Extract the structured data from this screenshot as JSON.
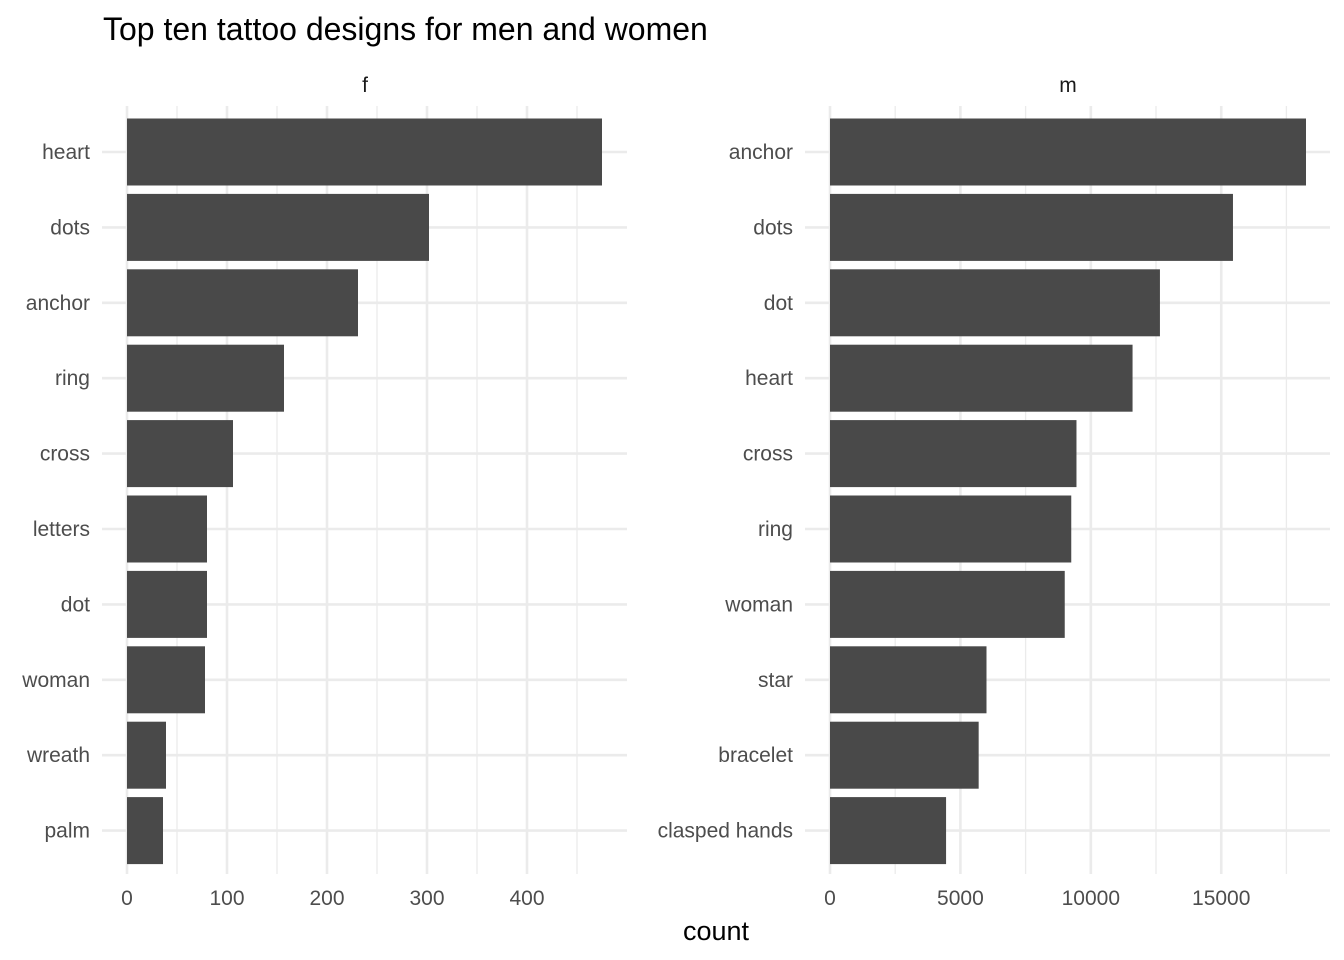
{
  "chart_data": {
    "type": "bar",
    "orientation": "horizontal",
    "title": "Top ten tattoo designs for men and women",
    "xlabel": "count",
    "ylabel": "",
    "grid": true,
    "legend": "none",
    "colors": {
      "bar": "#494949",
      "grid": "#ebebeb",
      "background": "#ffffff"
    },
    "panels": [
      {
        "strip": "f",
        "categories": [
          "heart",
          "dots",
          "anchor",
          "ring",
          "cross",
          "letters",
          "dot",
          "woman",
          "wreath",
          "palm"
        ],
        "values": [
          475,
          302,
          231,
          157,
          106,
          80,
          80,
          78,
          39,
          36
        ],
        "xlim": [
          0,
          476
        ],
        "x_ticks": [
          0,
          100,
          200,
          300,
          400
        ],
        "x_tick_labels": [
          "0",
          "100",
          "200",
          "300",
          "400"
        ],
        "x_minor_ticks": [
          50,
          150,
          250,
          350,
          450
        ]
      },
      {
        "strip": "m",
        "categories": [
          "anchor",
          "dots",
          "dot",
          "heart",
          "cross",
          "ring",
          "woman",
          "star",
          "bracelet",
          "clasped hands"
        ],
        "values": [
          18250,
          15450,
          12650,
          11600,
          9450,
          9250,
          9000,
          6000,
          5700,
          4450
        ],
        "xlim": [
          0,
          18250
        ],
        "x_ticks": [
          0,
          5000,
          10000,
          15000
        ],
        "x_tick_labels": [
          "0",
          "5000",
          "10000",
          "15000"
        ],
        "x_minor_ticks": [
          2500,
          7500,
          12500,
          17500
        ]
      }
    ]
  }
}
